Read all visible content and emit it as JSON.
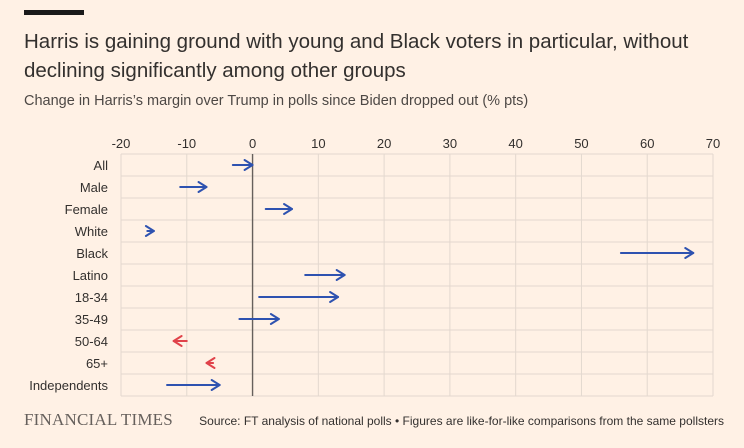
{
  "header": {
    "title": "Harris is gaining ground with young and Black voters in particular, without declining significantly among other groups",
    "subtitle": "Change in Harris’s margin over Trump in polls since Biden dropped out (% pts)"
  },
  "footer": {
    "logo_text": "FINANCIAL TIMES",
    "source": "Source: FT analysis of national polls • Figures are like-for-like comparisons from the same pollsters"
  },
  "colors": {
    "background": "#fff1e5",
    "gain": "#2e52b0",
    "loss": "#e0424a",
    "grid": "#e3d8cf",
    "zero_line": "#66605c",
    "text": "#33302e"
  },
  "chart_data": {
    "type": "arrow",
    "xlim": [
      -20,
      70
    ],
    "x_ticks": [
      -20,
      -10,
      0,
      10,
      20,
      30,
      40,
      50,
      60,
      70
    ],
    "grid": true,
    "categories": [
      "All",
      "Male",
      "Female",
      "White",
      "Black",
      "Latino",
      "18-34",
      "35-49",
      "50-64",
      "65+",
      "Independents"
    ],
    "series": [
      {
        "values_from": [
          -3,
          -11,
          2,
          -16,
          56,
          8,
          1,
          -2,
          -10,
          -6,
          -13
        ]
      },
      {
        "values_to": [
          0,
          -7,
          6,
          -15,
          67,
          14,
          13,
          4,
          -12,
          -7,
          -5
        ]
      }
    ]
  }
}
